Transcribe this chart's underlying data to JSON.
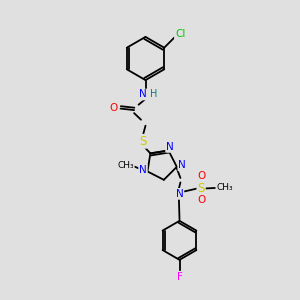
{
  "bg_color": "#e0e0e0",
  "atom_colors": {
    "C": "#000000",
    "N": "#0000ff",
    "O": "#ff0000",
    "S": "#cccc00",
    "Cl": "#00cc00",
    "F": "#ff00ff",
    "H": "#008080"
  },
  "bond_color": "#000000"
}
